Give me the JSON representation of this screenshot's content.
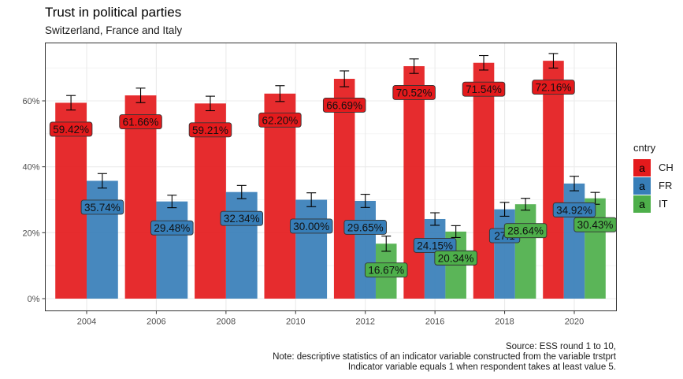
{
  "chart_data": {
    "type": "bar",
    "title": "Trust in political parties",
    "subtitle": "Switzerland, France and Italy",
    "xlabel": "",
    "ylabel": "",
    "ylim": [
      0,
      0.8
    ],
    "yticks": [
      0,
      0.2,
      0.4,
      0.6
    ],
    "ytick_labels": [
      "0%",
      "20%",
      "40%",
      "60%"
    ],
    "grid": true,
    "categories": [
      "2004",
      "2006",
      "2008",
      "2010",
      "2012",
      "2016",
      "2018",
      "2020"
    ],
    "legend": {
      "title": "cntry",
      "position": "right",
      "key_glyph": "a",
      "entries": [
        {
          "name": "CH",
          "color": "#E41A1C"
        },
        {
          "name": "FR",
          "color": "#377EB8"
        },
        {
          "name": "IT",
          "color": "#4DAF4A"
        }
      ]
    },
    "series": [
      {
        "name": "CH",
        "color": "#E41A1C",
        "values": [
          0.5942,
          0.6166,
          0.5921,
          0.622,
          0.6669,
          0.7052,
          0.7154,
          0.7216
        ],
        "labels": [
          "59.42%",
          "61.66%",
          "59.21%",
          "62.20%",
          "66.69%",
          "70.52%",
          "71.54%",
          "72.16%"
        ],
        "error": [
          0.022,
          0.022,
          0.022,
          0.024,
          0.024,
          0.022,
          0.022,
          0.022
        ]
      },
      {
        "name": "FR",
        "color": "#377EB8",
        "values": [
          0.3574,
          0.2948,
          0.3234,
          0.3,
          0.2965,
          0.2415,
          0.271,
          0.3492
        ],
        "labels": [
          "35.74%",
          "29.48%",
          "32.34%",
          "30.00%",
          "29.65%",
          "24.15%",
          "27.1",
          "34.92%"
        ],
        "error": [
          0.022,
          0.019,
          0.02,
          0.021,
          0.02,
          0.019,
          0.021,
          0.022
        ]
      },
      {
        "name": "IT",
        "color": "#4DAF4A",
        "values": [
          null,
          null,
          null,
          null,
          0.1667,
          0.2034,
          0.2864,
          0.3043
        ],
        "labels": [
          null,
          null,
          null,
          null,
          "16.67%",
          "20.34%",
          "28.64%",
          "30.43%"
        ],
        "error": [
          null,
          null,
          null,
          null,
          0.023,
          0.018,
          0.018,
          0.018
        ]
      }
    ],
    "caption": [
      "Source: ESS round 1 to 10,",
      "Note: descriptive statistics of an indicator variable constructed from the variable trstprt",
      "Indicator variable equals 1 when respondent takes at least value 5."
    ]
  }
}
